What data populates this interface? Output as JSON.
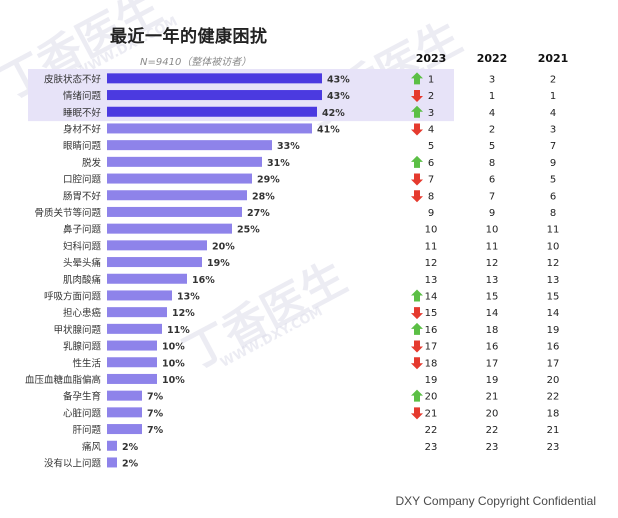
{
  "title": "最近一年的健康困扰",
  "subtitle": "N=9410（整体被访者）",
  "footer": "DXY Company Copyright Confidential",
  "watermark_1": "丁香医生",
  "watermark_2": "WWW.DXY.COM",
  "colors": {
    "bar_top": "#4b3ae0",
    "bar_rest": "#8e83ea",
    "highlight_bg": "#e7e3f8",
    "arrow_up": "#5bbf45",
    "arrow_down": "#e53a2e"
  },
  "chart_data": {
    "type": "bar",
    "orientation": "horizontal",
    "unit": "%",
    "categories": [
      "皮肤状态不好",
      "情绪问题",
      "睡眠不好",
      "身材不好",
      "眼睛问题",
      "脱发",
      "口腔问题",
      "肠胃不好",
      "骨质关节等问题",
      "鼻子问题",
      "妇科问题",
      "头晕头痛",
      "肌肉酸痛",
      "呼吸方面问题",
      "担心患癌",
      "甲状腺问题",
      "乳腺问题",
      "性生活",
      "血压血糖血脂偏高",
      "备孕生育",
      "心脏问题",
      "肝问题",
      "痛风",
      "没有以上问题"
    ],
    "values": [
      43,
      43,
      42,
      41,
      33,
      31,
      29,
      28,
      27,
      25,
      20,
      19,
      16,
      13,
      12,
      11,
      10,
      10,
      10,
      7,
      7,
      7,
      2,
      2
    ],
    "data_labels": [
      "43%",
      "43%",
      "42%",
      "41%",
      "33%",
      "31%",
      "29%",
      "28%",
      "27%",
      "25%",
      "20%",
      "19%",
      "16%",
      "13%",
      "12%",
      "11%",
      "10%",
      "10%",
      "10%",
      "7%",
      "7%",
      "7%",
      "2%",
      "2%"
    ],
    "highlighted_top": 3,
    "rank_table": {
      "columns": [
        "2023",
        "2022",
        "2021"
      ],
      "rank_2023": [
        "1",
        "2",
        "3",
        "4",
        "5",
        "6",
        "7",
        "8",
        "9",
        "10",
        "11",
        "12",
        "13",
        "14",
        "15",
        "16",
        "17",
        "18",
        "19",
        "20",
        "21",
        "22",
        "23"
      ],
      "rank_2022": [
        "3",
        "1",
        "4",
        "2",
        "5",
        "8",
        "6",
        "7",
        "9",
        "10",
        "11",
        "12",
        "13",
        "15",
        "14",
        "18",
        "16",
        "17",
        "19",
        "21",
        "20",
        "22",
        "23"
      ],
      "rank_2021": [
        "2",
        "1",
        "4",
        "3",
        "7",
        "9",
        "5",
        "6",
        "8",
        "11",
        "10",
        "12",
        "13",
        "15",
        "14",
        "19",
        "16",
        "17",
        "20",
        "22",
        "18",
        "21",
        "23"
      ],
      "trend": [
        "up",
        "down",
        "up",
        "down",
        "none",
        "up",
        "down",
        "down",
        "none",
        "none",
        "none",
        "none",
        "none",
        "up",
        "down",
        "up",
        "down",
        "down",
        "none",
        "up",
        "down",
        "none",
        "none"
      ]
    }
  }
}
